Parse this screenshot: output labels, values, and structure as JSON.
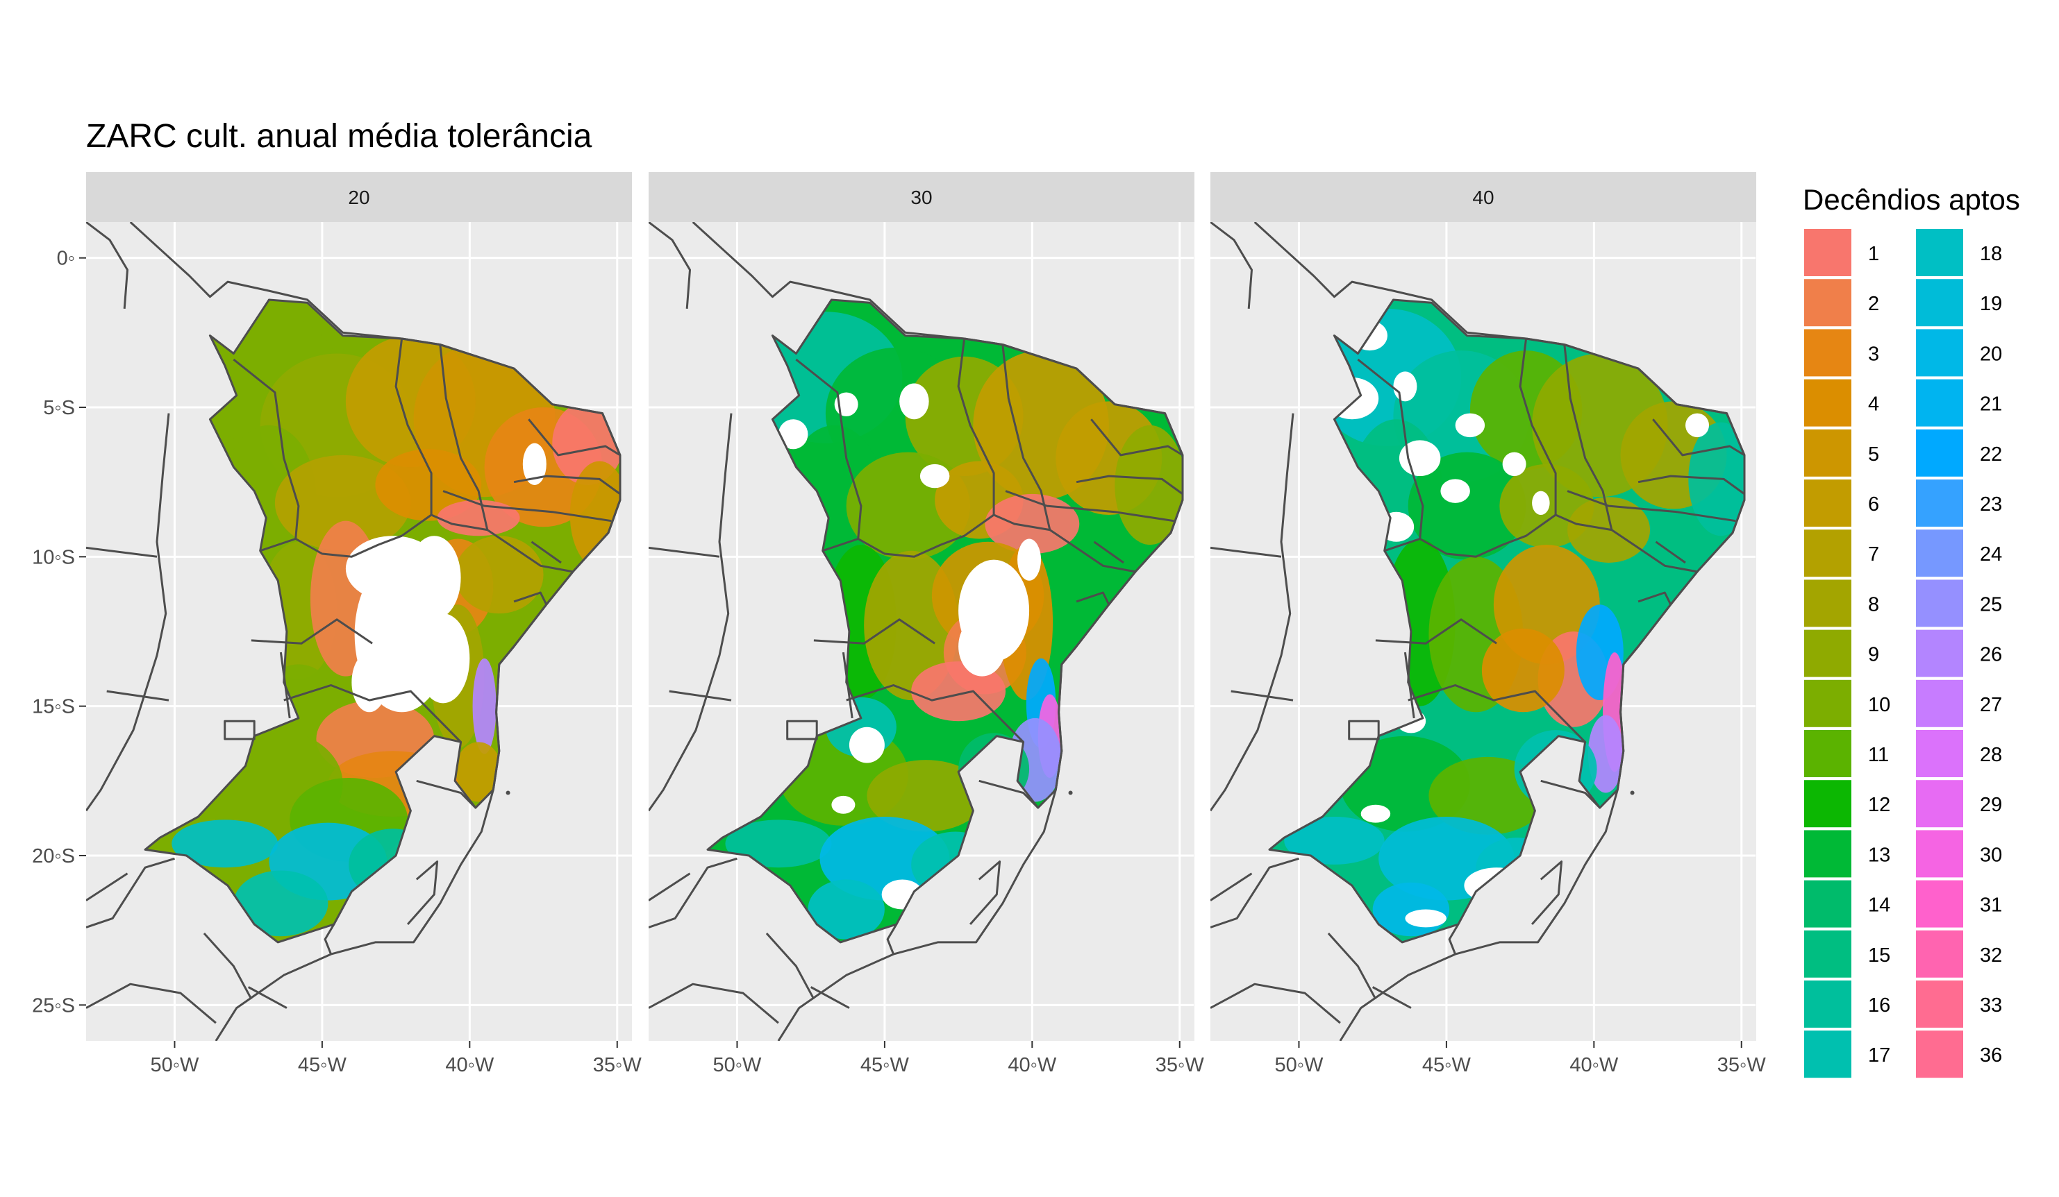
{
  "title": "ZARC cult. anual média tolerância",
  "panels": [
    {
      "label": "20"
    },
    {
      "label": "30"
    },
    {
      "label": "40"
    }
  ],
  "axes": {
    "y_ticks": [
      "0◦",
      "5◦S",
      "10◦S",
      "15◦S",
      "20◦S",
      "25◦S"
    ],
    "y_values": [
      0,
      -5,
      -10,
      -15,
      -20,
      -25
    ],
    "x_ticks": [
      "50◦W",
      "45◦W",
      "40◦W",
      "35◦W"
    ],
    "x_values": [
      -50,
      -45,
      -40,
      -35
    ],
    "lon_range": [
      -53,
      -34.5
    ],
    "lat_range": [
      -26.2,
      1.2
    ]
  },
  "legend": {
    "title": "Decêndios aptos",
    "items": [
      {
        "label": "1",
        "color": "#F8766D"
      },
      {
        "label": "2",
        "color": "#F07F4A"
      },
      {
        "label": "3",
        "color": "#E68613"
      },
      {
        "label": "4",
        "color": "#DB8E00"
      },
      {
        "label": "5",
        "color": "#CD9600"
      },
      {
        "label": "6",
        "color": "#C29C00"
      },
      {
        "label": "7",
        "color": "#B3A100"
      },
      {
        "label": "8",
        "color": "#A3A500"
      },
      {
        "label": "9",
        "color": "#8FAA00"
      },
      {
        "label": "10",
        "color": "#7CAE00"
      },
      {
        "label": "11",
        "color": "#5BB300"
      },
      {
        "label": "12",
        "color": "#0CB702"
      },
      {
        "label": "13",
        "color": "#00B936"
      },
      {
        "label": "14",
        "color": "#00BB6B"
      },
      {
        "label": "15",
        "color": "#00BE81"
      },
      {
        "label": "16",
        "color": "#00BF9C"
      },
      {
        "label": "17",
        "color": "#00C0AF"
      },
      {
        "label": "18",
        "color": "#00BFC4"
      },
      {
        "label": "19",
        "color": "#00BCD8"
      },
      {
        "label": "20",
        "color": "#00B8E7"
      },
      {
        "label": "21",
        "color": "#00B4F0"
      },
      {
        "label": "22",
        "color": "#00A9FF"
      },
      {
        "label": "23",
        "color": "#35A2FF"
      },
      {
        "label": "24",
        "color": "#7698FF"
      },
      {
        "label": "25",
        "color": "#9590FF"
      },
      {
        "label": "26",
        "color": "#B385FF"
      },
      {
        "label": "27",
        "color": "#C77CFF"
      },
      {
        "label": "28",
        "color": "#DB72FB"
      },
      {
        "label": "29",
        "color": "#E76BF3"
      },
      {
        "label": "30",
        "color": "#F564E3"
      },
      {
        "label": "31",
        "color": "#FF61CC"
      },
      {
        "label": "32",
        "color": "#FF64B0"
      },
      {
        "label": "33",
        "color": "#FF6C91"
      },
      {
        "label": "36",
        "color": "#FF6C91"
      }
    ]
  }
}
